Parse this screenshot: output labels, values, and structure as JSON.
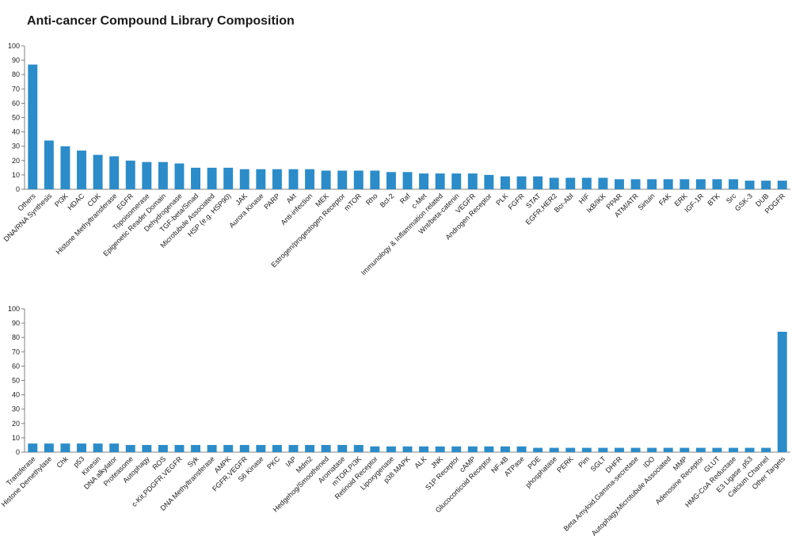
{
  "title": "Anti-cancer Compound Library Composition",
  "colors": {
    "bar": "#2b8cc9",
    "axis": "#808080",
    "text": "#1a1a1a"
  },
  "chart_data": [
    {
      "type": "bar",
      "ylim": [
        0,
        100
      ],
      "yticks": [
        0,
        10,
        20,
        30,
        40,
        50,
        60,
        70,
        80,
        90,
        100
      ],
      "grid": false,
      "categories": [
        "Others",
        "DNA/RNA Synthesis",
        "PI3K",
        "HDAC",
        "CDK",
        "Histone Methyltransferase",
        "EGFR",
        "Topoisomerase",
        "Epigenetic Reader Domain",
        "Dehydrogenase",
        "TGF-beta/Smad",
        "Microtubule Associated",
        "HSP (e.g. HSP90)",
        "JAK",
        "Aurora Kinase",
        "PARP",
        "Akt",
        "Anti-infection",
        "MEK",
        "Estrogen/progestogen Receptor",
        "mTOR",
        "Rho",
        "Bcl-2",
        "Raf",
        "c-Met",
        "Immunology & Inflammation related",
        "Wnt/beta-catenin",
        "VEGFR",
        "Androgen Receptor",
        "PLK",
        "FGFR",
        "STAT",
        "EGFR,HER2",
        "Bcr-Abl",
        "HIF",
        "IκB/IKK",
        "PPAR",
        "ATM/ATR",
        "Sirtuin",
        "FAK",
        "ERK",
        "IGF-1R",
        "BTK",
        "Src",
        "GSK-3",
        "DUB",
        "PDGFR"
      ],
      "values": [
        87,
        34,
        30,
        27,
        24,
        23,
        20,
        19,
        19,
        18,
        15,
        15,
        15,
        14,
        14,
        14,
        14,
        14,
        13,
        13,
        13,
        13,
        12,
        12,
        11,
        11,
        11,
        11,
        10,
        9,
        9,
        9,
        8,
        8,
        8,
        8,
        7,
        7,
        7,
        7,
        7,
        7,
        7,
        7,
        6,
        6,
        6
      ]
    },
    {
      "type": "bar",
      "ylim": [
        0,
        100
      ],
      "yticks": [
        0,
        10,
        20,
        30,
        40,
        50,
        60,
        70,
        80,
        90,
        100
      ],
      "grid": false,
      "categories": [
        "Transferase",
        "Histone Demethylase",
        "Chk",
        "p53",
        "Kinesin",
        "DNA alkylator",
        "Proteasome",
        "Autophagy",
        "ROS",
        "c-Kit,PDGFR,VEGFR",
        "Syk",
        "DNA Methyltransferase",
        "AMPK",
        "FGFR,VEGFR",
        "S6 Kinase",
        "PKC",
        "IAP",
        "Mdm2",
        "Hedgehog/Smoothened",
        "Aromatase",
        "mTOR,PI3K",
        "Retinoid Receptor",
        "Lipoxygenase",
        "p38 MAPK",
        "ALK",
        "JNK",
        "S1P Receptor",
        "cAMP",
        "Glucocorticoid Receptor",
        "NF-κB",
        "ATPase",
        "PDE",
        "phosphatase",
        "PERK",
        "Pim",
        "SGLT",
        "DHFR",
        "Beta Amyloid,Gamma-secretase",
        "IDO",
        "Autophagy,Microtubule Associated",
        "MMP",
        "Adenosine Receptor",
        "GLUT",
        "HMG-CoA Reductase",
        "E3 Ligase ,p53",
        "Calcium Channel",
        "Other Targets"
      ],
      "values": [
        6,
        6,
        6,
        6,
        6,
        6,
        5,
        5,
        5,
        5,
        5,
        5,
        5,
        5,
        5,
        5,
        5,
        5,
        5,
        5,
        5,
        4,
        4,
        4,
        4,
        4,
        4,
        4,
        4,
        4,
        4,
        3,
        3,
        3,
        3,
        3,
        3,
        3,
        3,
        3,
        3,
        3,
        3,
        3,
        3,
        3,
        84
      ]
    }
  ]
}
